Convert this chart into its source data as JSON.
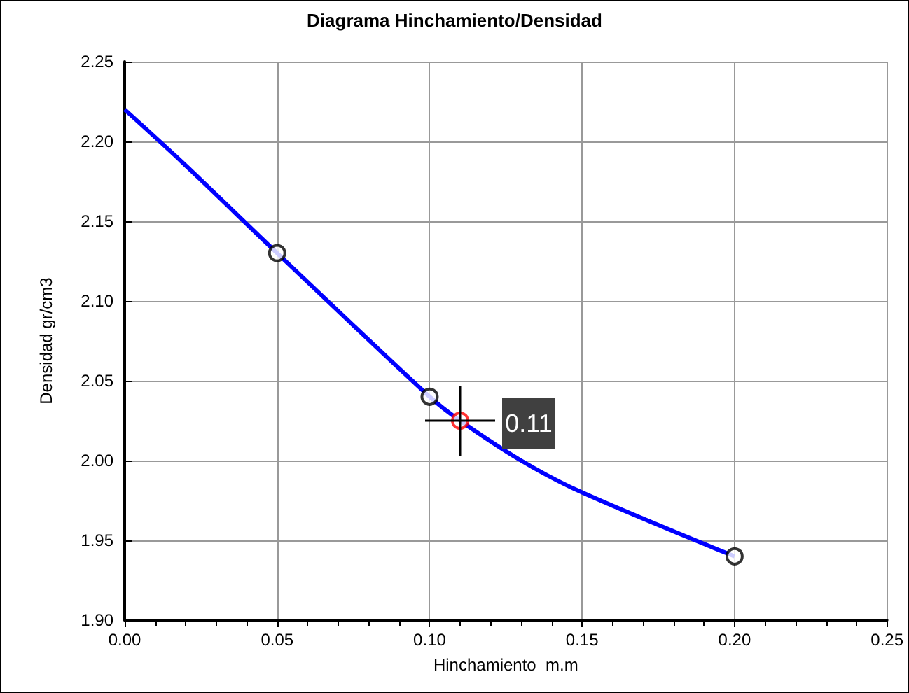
{
  "chart_data": {
    "type": "line",
    "title": "Diagrama Hinchamiento/Densidad",
    "xlabel": "Hinchamiento  m.m",
    "ylabel": "Densidad gr/cm3",
    "series": [
      {
        "color": "#0000ff",
        "marker": "none",
        "x": [
          0,
          0.02,
          0.05,
          0.1,
          0.11,
          0.13,
          0.15,
          0.2
        ],
        "values": [
          2.22,
          2.185,
          2.13,
          2.04,
          2.025,
          2.0,
          1.98,
          1.94
        ]
      },
      {
        "type": "scatter",
        "color": "#000000",
        "marker": "circle",
        "x": [
          0.05,
          0.1,
          0.2
        ],
        "values": [
          2.13,
          2.04,
          1.94
        ]
      },
      {
        "type": "scatter",
        "color": "#ff0000",
        "marker": "circle",
        "x": [
          0.11
        ],
        "values": [
          2.025
        ]
      }
    ],
    "annotations": [
      {
        "text": "0.11",
        "x": 0.11,
        "y": 2.025
      }
    ],
    "xlim": [
      0,
      0.25
    ],
    "xticks": [
      {
        "value": 0,
        "label": "0.00"
      },
      0.05,
      {
        "value": 0.1,
        "label": "0.10"
      },
      0.15,
      {
        "value": 0.2,
        "label": "0.20"
      },
      0.25
    ],
    "ylim": [
      1.9,
      2.25
    ],
    "yticks": [
      {
        "value": 1.9,
        "label": "1.90"
      },
      1.95,
      {
        "value": 2.0,
        "label": "2.00"
      },
      2.05,
      {
        "value": 2.1,
        "label": "2.10"
      },
      2.15,
      {
        "value": 2.2,
        "label": "2.20"
      },
      2.25
    ],
    "grid": true
  }
}
